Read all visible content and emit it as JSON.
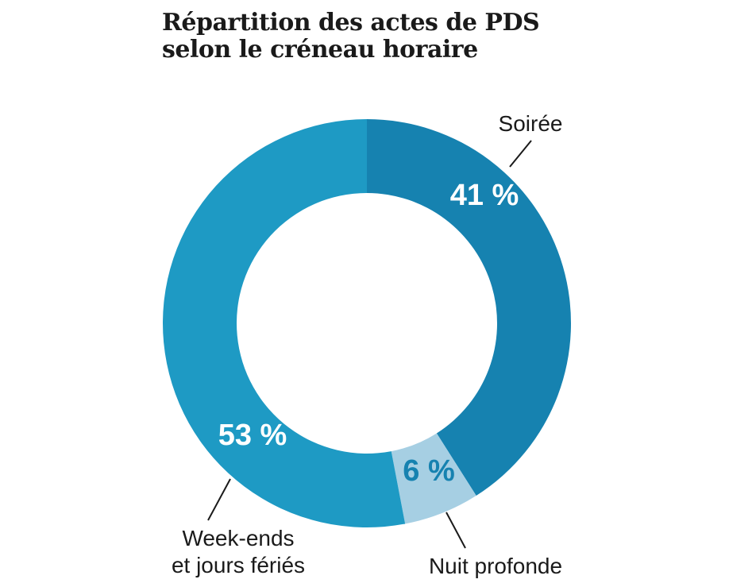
{
  "chart_data": {
    "type": "pie",
    "variant": "donut",
    "title_lines": [
      "Répartition des actes de PDS",
      "selon le créneau horaire"
    ],
    "slices": [
      {
        "id": "soiree",
        "label_lines": [
          "Soirée"
        ],
        "value": 41,
        "value_label": "41 %",
        "color": "#1682b0",
        "label_color": "#ffffff"
      },
      {
        "id": "nuit",
        "label_lines": [
          "Nuit profonde"
        ],
        "value": 6,
        "value_label": "6 %",
        "color": "#a6cfe3",
        "label_color": "#1682b0"
      },
      {
        "id": "weekend",
        "label_lines": [
          "Week-ends",
          "et jours fériés"
        ],
        "value": 53,
        "value_label": "53 %",
        "color": "#1e9ac4",
        "label_color": "#ffffff"
      }
    ]
  }
}
